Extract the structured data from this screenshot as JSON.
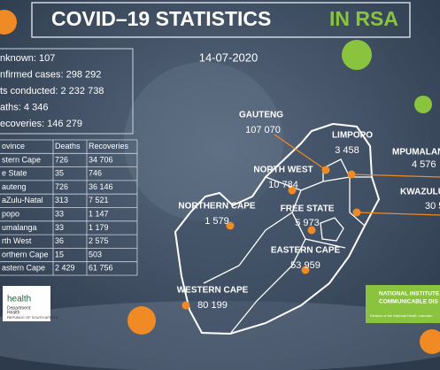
{
  "header": {
    "title": "COVID–19 STATISTICS",
    "title_highlight": "IN RSA",
    "date": "14-07-2020"
  },
  "summary": [
    "nknown: 107",
    "nfirmed cases: 298 292",
    "ts conducted: 2 232 738",
    "aths: 4 346",
    "ecoveries: 146 279"
  ],
  "table": {
    "header": [
      "ovince",
      "Deaths",
      "Recoveries"
    ],
    "rows": [
      [
        "stern Cape",
        "726",
        "34 706"
      ],
      [
        "e State",
        "35",
        "746"
      ],
      [
        "auteng",
        "726",
        "36 146"
      ],
      [
        "aZulu-Natal",
        "313",
        "7 521"
      ],
      [
        "popo",
        "33",
        "1 147"
      ],
      [
        "umalanga",
        "33",
        "1 179"
      ],
      [
        "rth West",
        "36",
        "2 575"
      ],
      [
        "orthern Cape",
        "15",
        "503"
      ],
      [
        "astern Cape",
        "2 429",
        "61 756"
      ]
    ]
  },
  "map": {
    "provinces": [
      {
        "name": "GAUTENG",
        "cases": "107 070"
      },
      {
        "name": "LIMPOPO",
        "cases": "3 458"
      },
      {
        "name": "MPUMALAN",
        "cases": "4 576"
      },
      {
        "name": "NORTH WEST",
        "cases": "10 784"
      },
      {
        "name": "FREE STATE",
        "cases": "5 973"
      },
      {
        "name": "KWAZULU",
        "cases": "30 5"
      },
      {
        "name": "NORTHERN CAPE",
        "cases": "1 579"
      },
      {
        "name": "EASTERN CAPE",
        "cases": "53 959"
      },
      {
        "name": "WESTERN CAPE",
        "cases": "80 199"
      }
    ]
  },
  "logos": {
    "health": [
      "health",
      "Department:",
      "Health",
      "REPUBLIC OF SOUTH AFRICA"
    ],
    "nicd": [
      "NATIONAL INSTITUTE",
      "COMMUNICABLE DIS",
      "Division of the National Health Laborato"
    ]
  }
}
